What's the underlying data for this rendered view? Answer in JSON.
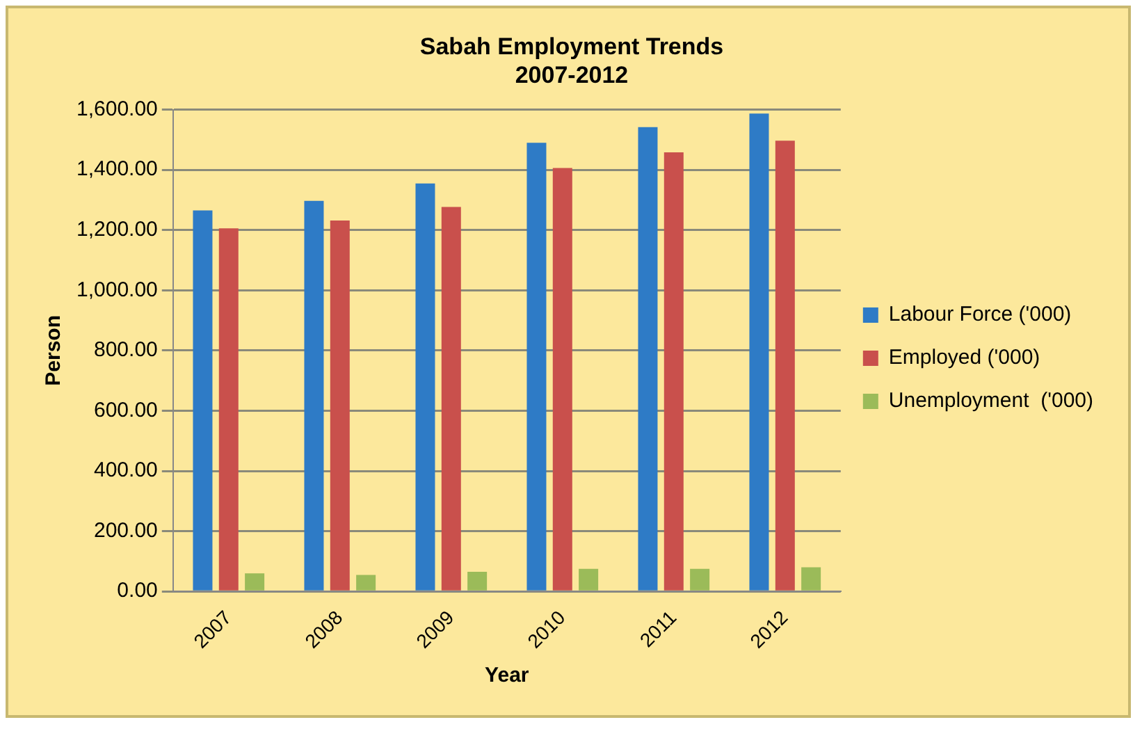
{
  "chart_data": {
    "type": "bar",
    "title": "Sabah Employment Trends\n2007-2012",
    "xlabel": "Year",
    "ylabel": "Person",
    "categories": [
      "2007",
      "2008",
      "2009",
      "2010",
      "2011",
      "2012"
    ],
    "series": [
      {
        "name": "Labour Force ('000)",
        "color": "#2e7bc6",
        "values": [
          1265,
          1297,
          1355,
          1490,
          1542,
          1587
        ]
      },
      {
        "name": "Employed ('000)",
        "color": "#c9504c",
        "values": [
          1206,
          1232,
          1277,
          1406,
          1458,
          1497
        ]
      },
      {
        "name": "Unemployment  ('000)",
        "color": "#9bbb59",
        "values": [
          60,
          55,
          65,
          75,
          75,
          80
        ]
      }
    ],
    "ylim": [
      0,
      1600
    ],
    "yticks": [
      {
        "value": 0,
        "label": "0.00"
      },
      {
        "value": 200,
        "label": "200.00"
      },
      {
        "value": 400,
        "label": "400.00"
      },
      {
        "value": 600,
        "label": "600.00"
      },
      {
        "value": 800,
        "label": "800.00"
      },
      {
        "value": 1000,
        "label": "1,000.00"
      },
      {
        "value": 1200,
        "label": "1,200.00"
      },
      {
        "value": 1400,
        "label": "1,400.00"
      },
      {
        "value": 1600,
        "label": "1,600.00"
      }
    ],
    "grid": "y",
    "legend": "right"
  }
}
